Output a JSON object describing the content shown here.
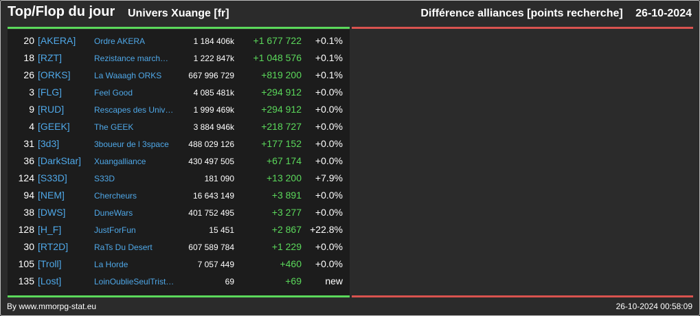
{
  "header": {
    "title": "Top/Flop du jour",
    "subtitle": "Univers Xuange [fr]",
    "right_title": "Différence alliances [points recherche]",
    "date": "26-10-2024"
  },
  "rows": [
    {
      "rank": "20",
      "tag": "[AKERA]",
      "name": "Ordre AKERA",
      "points": "1 184 406k",
      "diff": "+1 677 722",
      "pct": "+0.1%"
    },
    {
      "rank": "18",
      "tag": "[RZT]",
      "name": "Rezistance march…",
      "points": "1 222 847k",
      "diff": "+1 048 576",
      "pct": "+0.1%"
    },
    {
      "rank": "26",
      "tag": "[ORKS]",
      "name": "La Waaagh ORKS",
      "points": "667 996 729",
      "diff": "+819 200",
      "pct": "+0.1%"
    },
    {
      "rank": "3",
      "tag": "[FLG]",
      "name": "Feel Good",
      "points": "4 085 481k",
      "diff": "+294 912",
      "pct": "+0.0%"
    },
    {
      "rank": "9",
      "tag": "[RUD]",
      "name": "Rescapes des Univ…",
      "points": "1 999 469k",
      "diff": "+294 912",
      "pct": "+0.0%"
    },
    {
      "rank": "4",
      "tag": "[GEEK]",
      "name": "The GEEK",
      "points": "3 884 946k",
      "diff": "+218 727",
      "pct": "+0.0%"
    },
    {
      "rank": "31",
      "tag": "[3d3]",
      "name": "3boueur de l 3space",
      "points": "488 029 126",
      "diff": "+177 152",
      "pct": "+0.0%"
    },
    {
      "rank": "36",
      "tag": "[DarkStar]",
      "name": "Xuangalliance",
      "points": "430 497 505",
      "diff": "+67 174",
      "pct": "+0.0%"
    },
    {
      "rank": "124",
      "tag": "[S33D]",
      "name": "S33D",
      "points": "181 090",
      "diff": "+13 200",
      "pct": "+7.9%"
    },
    {
      "rank": "94",
      "tag": "[NEM]",
      "name": "Chercheurs",
      "points": "16 643 149",
      "diff": "+3 891",
      "pct": "+0.0%"
    },
    {
      "rank": "38",
      "tag": "[DWS]",
      "name": "DuneWars",
      "points": "401 752 495",
      "diff": "+3 277",
      "pct": "+0.0%"
    },
    {
      "rank": "128",
      "tag": "[H_F]",
      "name": "JustForFun",
      "points": "15 451",
      "diff": "+2 867",
      "pct": "+22.8%"
    },
    {
      "rank": "30",
      "tag": "[RT2D]",
      "name": "RaTs Du Desert",
      "points": "607 589 784",
      "diff": "+1 229",
      "pct": "+0.0%"
    },
    {
      "rank": "105",
      "tag": "[Troll]",
      "name": "La Horde",
      "points": "7 057 449",
      "diff": "+460",
      "pct": "+0.0%"
    },
    {
      "rank": "135",
      "tag": "[Lost]",
      "name": "LoinOublieSeulTrist…",
      "points": "69",
      "diff": "+69",
      "pct": "new"
    }
  ],
  "footer": {
    "source": "By www.mmorpg-stat.eu",
    "timestamp": "26-10-2024 00:58:09"
  },
  "colors": {
    "top_accent": "#5bd95b",
    "flop_accent": "#d9534f",
    "link": "#4fa8e8"
  }
}
